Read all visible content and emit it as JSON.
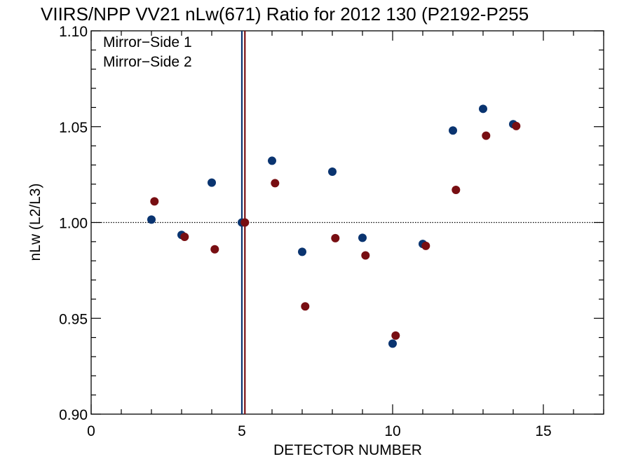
{
  "chart_data": {
    "type": "scatter",
    "title": "VIIRS/NPP VV21 nLw(671) Ratio for 2012 130 (P2192-P255",
    "xlabel": "DETECTOR NUMBER",
    "ylabel": "nLw (L2/L3)",
    "xlim": [
      0,
      17
    ],
    "ylim": [
      0.9,
      1.1
    ],
    "x_ticks": [
      0,
      5,
      10,
      15
    ],
    "x_tick_labels": [
      "0",
      "5",
      "10",
      "15"
    ],
    "y_ticks": [
      0.9,
      0.95,
      1.0,
      1.05,
      1.1
    ],
    "y_tick_labels": [
      "0.90",
      "0.95",
      "1.00",
      "1.05",
      "1.10"
    ],
    "reference_line_y": 1.0,
    "legend_position": "top-left",
    "series": [
      {
        "name": "Mirror−Side 1",
        "color": "#0a3470",
        "x": [
          2,
          3,
          4,
          5,
          6,
          7,
          8,
          9,
          10,
          11,
          12,
          13,
          14
        ],
        "y": [
          1.0015,
          0.9935,
          1.0208,
          1.0,
          1.0322,
          0.9847,
          1.0265,
          0.992,
          0.9368,
          0.9888,
          1.048,
          1.0593,
          1.0513
        ],
        "vline_x": 5
      },
      {
        "name": "Mirror−Side 2",
        "color": "#780e12",
        "x": [
          2.1,
          3.1,
          4.1,
          5.1,
          6.1,
          7.1,
          8.1,
          9.1,
          10.1,
          11.1,
          12.1,
          13.1,
          14.1
        ],
        "y": [
          1.011,
          0.9925,
          0.986,
          1.0,
          1.0205,
          0.9562,
          0.9918,
          0.9828,
          0.941,
          0.9878,
          1.017,
          1.0453,
          1.0503
        ],
        "vline_x": 5.1
      }
    ]
  }
}
